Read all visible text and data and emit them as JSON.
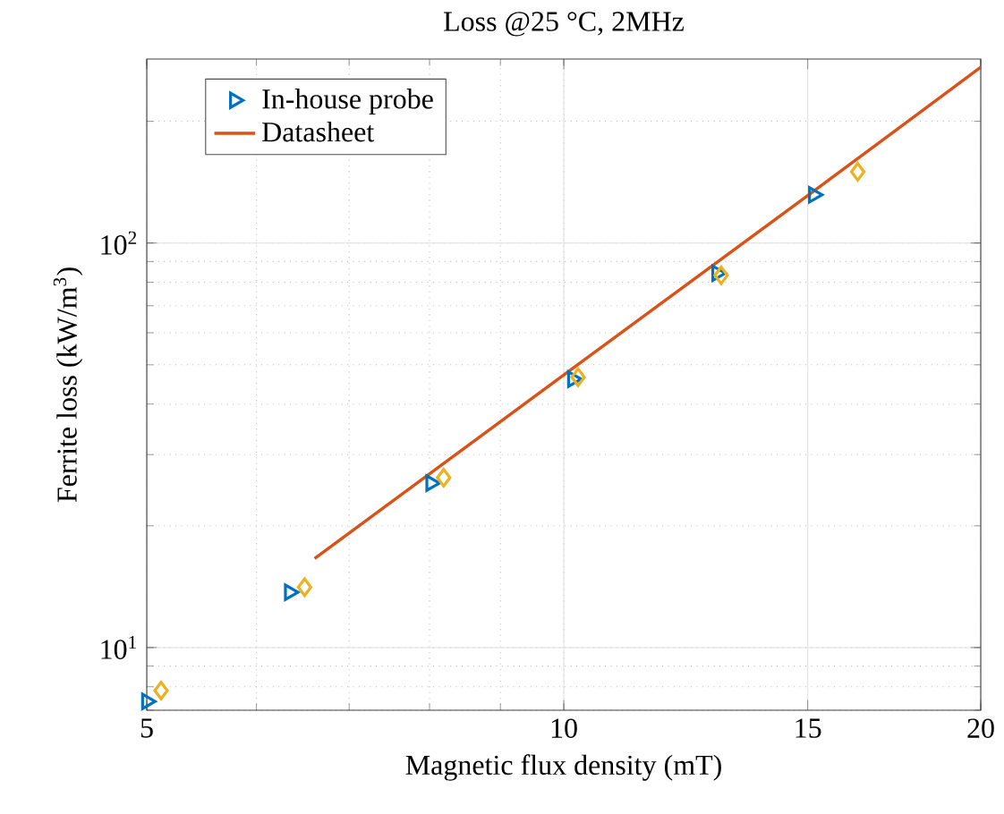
{
  "chart_data": {
    "type": "scatter",
    "title": "Loss @25 °C, 2MHz",
    "xlabel": "Magnetic flux density (mT)",
    "ylabel": "Ferrite loss (kW/m$^{3}$)",
    "log": "xy",
    "grid": true,
    "legend": "top left",
    "xlim": [
      5,
      20
    ],
    "xticks": [
      5,
      10,
      15,
      20
    ],
    "ylim": [
      7,
      285
    ],
    "yticks": [
      {
        "value": 10,
        "label": "10$^{1}$"
      },
      {
        "value": 100,
        "label": "10$^{2}$"
      }
    ],
    "series": [
      {
        "name": "In-house probe",
        "marker": "triangle",
        "color": "#0072bd",
        "x": [
          5.0,
          6.34,
          8.02,
          10.15,
          12.9,
          15.15
        ],
        "values": [
          7.36,
          13.7,
          25.5,
          46.1,
          84.2,
          131.6
        ]
      },
      {
        "name": "Datasheet",
        "type": "line",
        "marker": "none",
        "line_style": "solid",
        "color": "#d95319",
        "x": [
          6.61,
          10,
          15,
          20
        ],
        "values": [
          16.6,
          47.2,
          131,
          272
        ]
      },
      {
        "marker": "diamond",
        "color": "#edb120",
        "x": [
          5.12,
          6.5,
          8.19,
          10.24,
          12.99,
          16.3
        ],
        "values": [
          7.83,
          14.1,
          26.3,
          46.6,
          83.2,
          150
        ]
      }
    ]
  }
}
